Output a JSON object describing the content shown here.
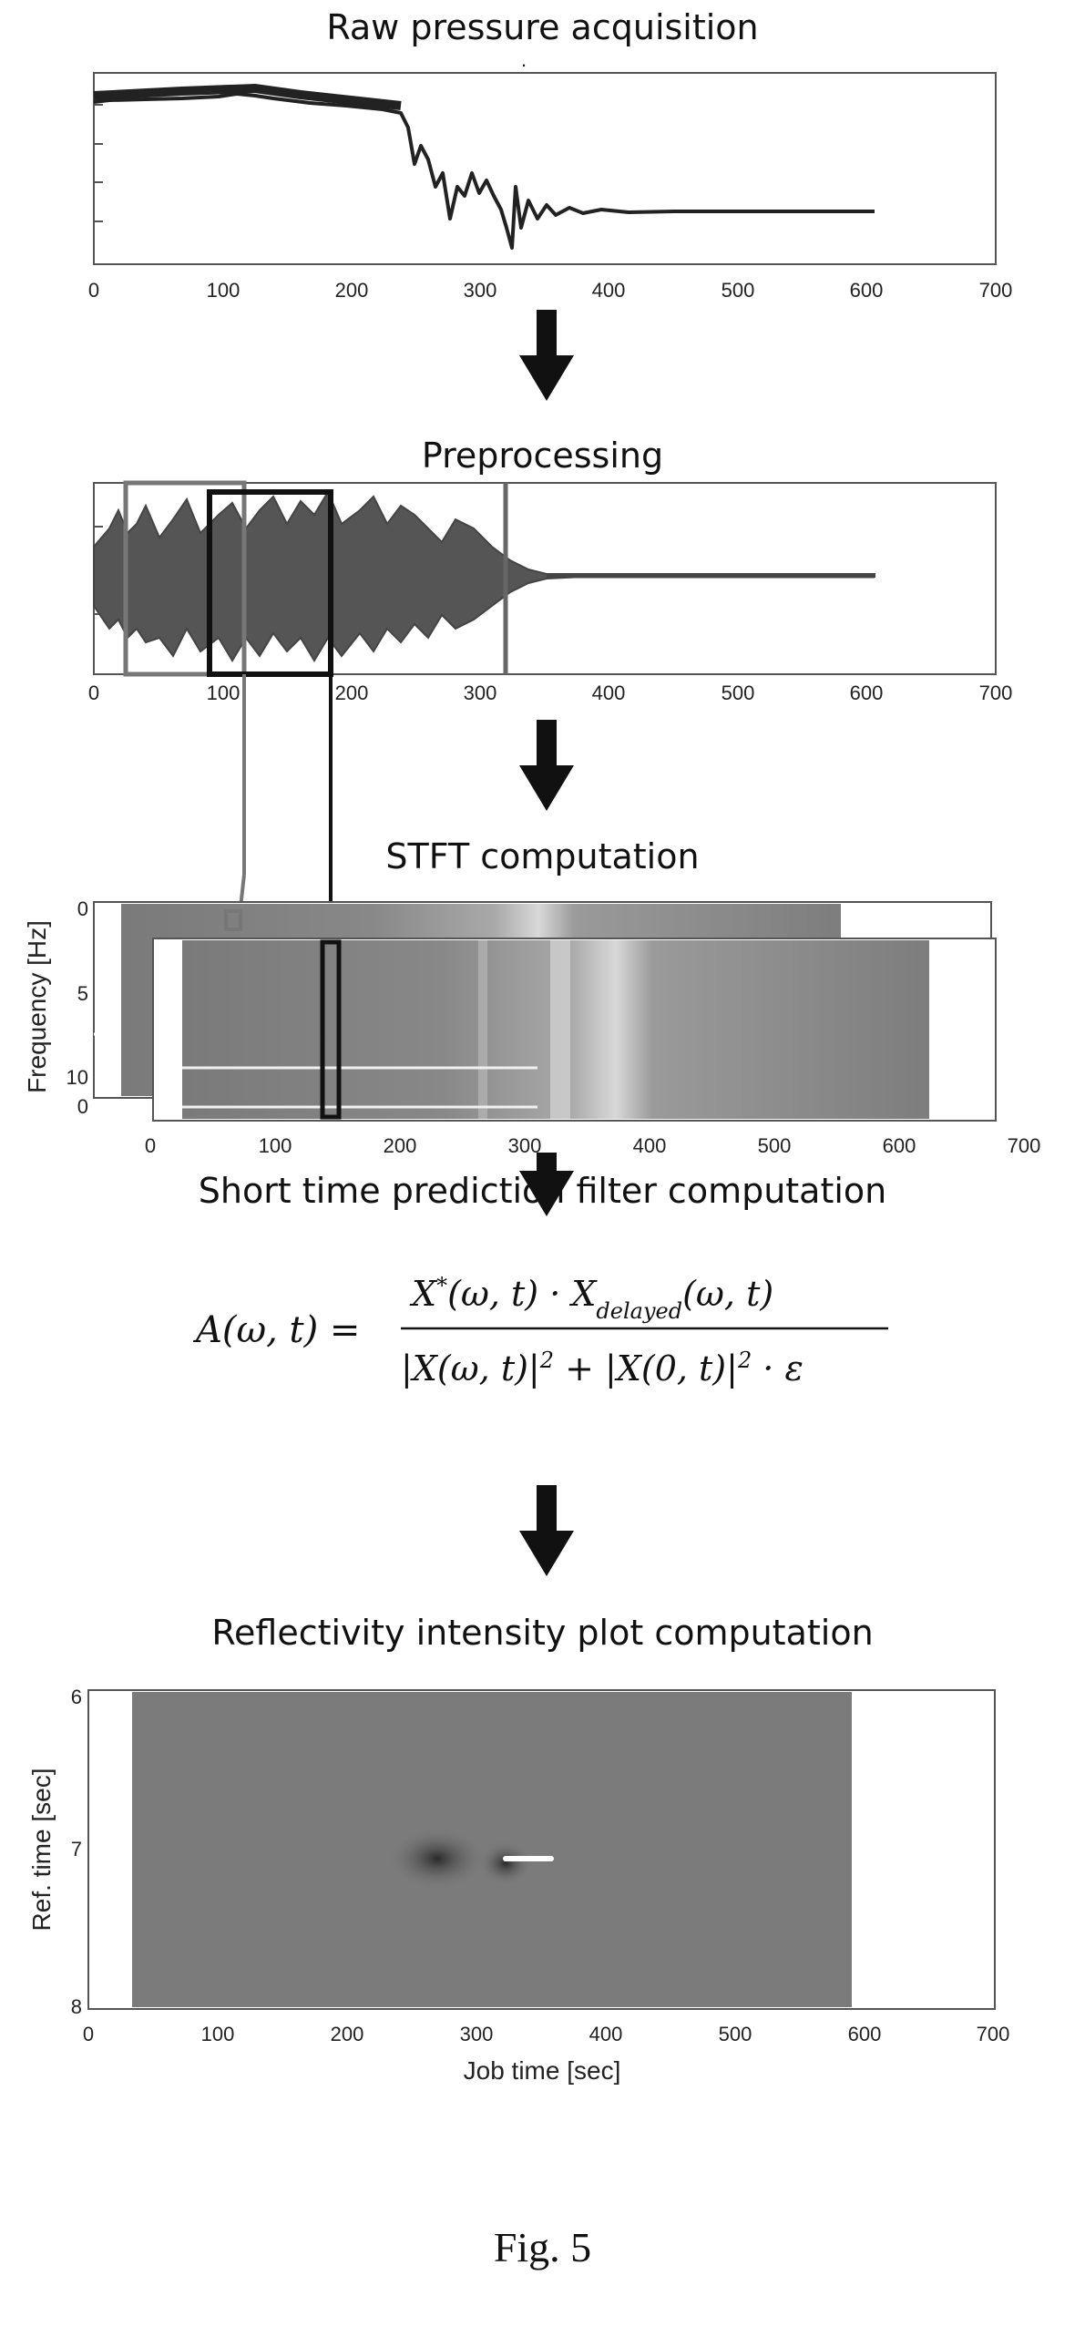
{
  "stages": {
    "raw_title": "Raw pressure acquisition",
    "pre_title": "Preprocessing",
    "stft_title": "STFT computation",
    "filter_title": "Short time prediction filter computation",
    "refl_title": "Reflectivity intensity plot computation"
  },
  "formula": {
    "lhs": "A(ω, t) =",
    "numerator_base": "X",
    "numerator_sup": "*",
    "numerator_arg": "(ω, t) · X",
    "numerator_sub": "delayed",
    "numerator_arg2": "(ω, t)",
    "den_part1": "|X(ω, t)|",
    "den_sup1": "2",
    "den_part2": " + |X(0, t)|",
    "den_sup2": "2",
    "den_part3": " · ε"
  },
  "axes": {
    "time_ticks": [
      "0",
      "100",
      "200",
      "300",
      "400",
      "500",
      "600",
      "700"
    ],
    "stft_freq_ticks": [
      "0",
      "5",
      "10"
    ],
    "stft_second_zero": "0",
    "stft_ylabel": "Frequency [Hz]",
    "refl_yticks": [
      "6",
      "7",
      "8"
    ],
    "refl_ylabel": "Ref. time [sec]",
    "refl_xlabel": "Job time [sec]"
  },
  "caption": "Fig. 5",
  "chart_data": [
    {
      "type": "line",
      "title": "Raw pressure acquisition",
      "xlim": [
        0,
        700
      ],
      "series": [
        {
          "x": [
            0,
            50,
            100,
            150,
            200,
            240,
            250,
            265,
            280,
            295,
            310,
            320,
            330,
            345,
            360,
            380,
            400,
            450,
            500,
            550,
            610
          ],
          "y": [
            0.92,
            0.93,
            0.94,
            0.95,
            0.93,
            0.9,
            0.6,
            0.35,
            0.55,
            0.3,
            0.45,
            0.38,
            0.15,
            0.45,
            0.28,
            0.4,
            0.33,
            0.34,
            0.34,
            0.34,
            0.34
          ]
        }
      ]
    },
    {
      "type": "line",
      "title": "Preprocessing",
      "xlim": [
        0,
        700
      ],
      "series": [
        {
          "x": [
            0,
            330,
            360,
            400,
            610
          ],
          "y": [
            1.0,
            0.9,
            0.3,
            0.05,
            0.0
          ]
        }
      ],
      "windows": [
        {
          "x0": 25,
          "x1": 120
        },
        {
          "x0": 90,
          "x1": 185
        }
      ],
      "markers": [
        320
      ]
    },
    {
      "type": "heatmap",
      "title": "STFT computation",
      "ylabel": "Frequency [Hz]",
      "xlim": [
        0,
        700
      ],
      "ylim": [
        0,
        10
      ],
      "yticks": [
        0,
        5,
        10
      ]
    },
    {
      "type": "heatmap",
      "title": "Reflectivity intensity plot computation",
      "xlabel": "Job time [sec]",
      "ylabel": "Ref. time [sec]",
      "xlim": [
        0,
        700
      ],
      "ylim": [
        6,
        8
      ],
      "yticks": [
        6,
        7,
        8
      ]
    }
  ]
}
